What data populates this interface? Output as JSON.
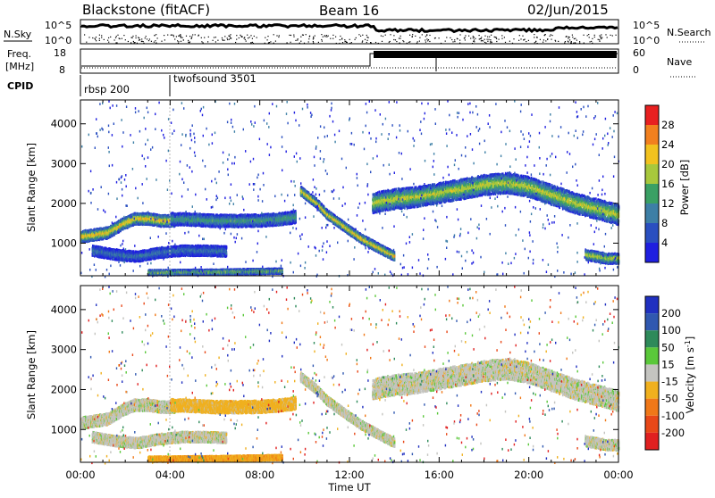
{
  "header": {
    "station": "Blackstone (fitACF)",
    "beam": "Beam 16",
    "date": "02/Jun/2015"
  },
  "summary_panels": {
    "nsky_label": "N.Sky",
    "nsearch_label": "N.Search",
    "nsky_ticks": [
      "10^5",
      "10^0"
    ],
    "nsearch_ticks": [
      "10^5",
      "10^0"
    ],
    "freq_label": [
      "Freq.",
      "[MHz]"
    ],
    "freq_ticks": [
      "18",
      "8"
    ],
    "nave_label": "Nave",
    "nave_ticks": [
      "60",
      "0"
    ],
    "cpid_label": "CPID",
    "cpid_segments": [
      {
        "label": "rbsp 200",
        "start_ut": 0.0
      },
      {
        "label": "twofsound 3501",
        "start_ut": 4.0
      }
    ]
  },
  "chart_data": [
    {
      "type": "heatmap",
      "title": "",
      "xlabel": "",
      "ylabel": "Slant Range [km]",
      "xlim": [
        0,
        24
      ],
      "ylim": [
        180,
        4600
      ],
      "yticks": [
        1000,
        2000,
        3000,
        4000
      ],
      "colorbar": {
        "label": "Power [dB]",
        "ticks": [
          4,
          8,
          12,
          16,
          20,
          24,
          28
        ],
        "levels": [
          {
            "min": 0,
            "max": 4,
            "color": "#1f1fe0"
          },
          {
            "min": 4,
            "max": 8,
            "color": "#2a4fc0"
          },
          {
            "min": 8,
            "max": 12,
            "color": "#3d7fa6"
          },
          {
            "min": 12,
            "max": 16,
            "color": "#3aa064"
          },
          {
            "min": 16,
            "max": 20,
            "color": "#a8c83c"
          },
          {
            "min": 20,
            "max": 24,
            "color": "#f2c21e"
          },
          {
            "min": 24,
            "max": 28,
            "color": "#f2801e"
          },
          {
            "min": 28,
            "max": 32,
            "color": "#e82020"
          }
        ]
      },
      "scatter_bands": [
        {
          "x": [
            0.0,
            0.6,
            1.2,
            1.8,
            2.4,
            3.0,
            3.6,
            4.2
          ],
          "range": [
            1150,
            1200,
            1250,
            1450,
            1600,
            1600,
            1550,
            1550
          ],
          "width": 280,
          "peak_db": 24
        },
        {
          "x": [
            4.0,
            5.0,
            6.0,
            7.0,
            8.0,
            9.0,
            9.6
          ],
          "range": [
            1600,
            1580,
            1550,
            1550,
            1560,
            1600,
            1650
          ],
          "width": 300,
          "peak_db": 14
        },
        {
          "x": [
            9.8,
            10.5,
            11.0,
            11.5,
            12.0,
            12.5,
            13.0,
            13.5,
            14.0
          ],
          "range": [
            2300,
            2000,
            1700,
            1500,
            1300,
            1100,
            950,
            800,
            650
          ],
          "width": 220,
          "peak_db": 24
        },
        {
          "x": [
            13.0,
            14.0,
            15.0,
            16.0,
            17.0,
            18.0,
            19.0,
            20.0,
            21.0,
            22.0,
            23.0,
            24.0
          ],
          "range": [
            2000,
            2100,
            2150,
            2250,
            2350,
            2450,
            2500,
            2400,
            2200,
            2000,
            1850,
            1700
          ],
          "width": 500,
          "peak_db": 20
        },
        {
          "x": [
            0.5,
            1.5,
            2.5,
            3.5,
            4.5,
            5.5,
            6.5
          ],
          "range": [
            800,
            700,
            650,
            750,
            800,
            800,
            780
          ],
          "width": 250,
          "peak_db": 10
        },
        {
          "x": [
            3.0,
            4.0,
            5.0,
            6.0,
            7.0,
            8.0,
            9.0
          ],
          "range": [
            250,
            250,
            260,
            260,
            270,
            280,
            290
          ],
          "width": 120,
          "peak_db": 18
        },
        {
          "x": [
            22.5,
            23.0,
            23.5,
            24.0
          ],
          "range": [
            700,
            650,
            600,
            600
          ],
          "width": 250,
          "peak_db": 20
        }
      ]
    },
    {
      "type": "heatmap",
      "title": "",
      "xlabel": "Time UT",
      "ylabel": "Slant Range [km]",
      "xlim": [
        0,
        24
      ],
      "ylim": [
        180,
        4600
      ],
      "xticks": [
        "00:00",
        "04:00",
        "08:00",
        "12:00",
        "16:00",
        "20:00",
        "00:00"
      ],
      "yticks": [
        1000,
        2000,
        3000,
        4000
      ],
      "colorbar": {
        "label": "Velocity [m s^-1]",
        "ticks": [
          200,
          100,
          50,
          15,
          -15,
          -50,
          -100,
          -200
        ],
        "levels": [
          {
            "min": 200,
            "max": 300,
            "color": "#2030c0"
          },
          {
            "min": 100,
            "max": 200,
            "color": "#3058b0"
          },
          {
            "min": 50,
            "max": 100,
            "color": "#2e8a5a"
          },
          {
            "min": 15,
            "max": 50,
            "color": "#5ac83a"
          },
          {
            "min": -15,
            "max": 15,
            "color": "#c4c4c0"
          },
          {
            "min": -50,
            "max": -15,
            "color": "#f0b01e"
          },
          {
            "min": -100,
            "max": -50,
            "color": "#f07818"
          },
          {
            "min": -200,
            "max": -100,
            "color": "#e84818"
          },
          {
            "min": -300,
            "max": -200,
            "color": "#e02020"
          }
        ]
      },
      "scatter_bands": [
        {
          "x": [
            0.0,
            0.6,
            1.2,
            1.8,
            2.4,
            3.0,
            3.6,
            4.2
          ],
          "range": [
            1150,
            1200,
            1250,
            1450,
            1600,
            1600,
            1550,
            1550
          ],
          "width": 280,
          "velocity": 0
        },
        {
          "x": [
            4.0,
            5.0,
            6.0,
            7.0,
            8.0,
            9.0,
            9.6
          ],
          "range": [
            1600,
            1580,
            1550,
            1550,
            1560,
            1600,
            1650
          ],
          "width": 300,
          "velocity": -30
        },
        {
          "x": [
            9.8,
            10.5,
            11.0,
            11.5,
            12.0,
            12.5,
            13.0,
            13.5,
            14.0
          ],
          "range": [
            2300,
            2000,
            1700,
            1500,
            1300,
            1100,
            950,
            800,
            650
          ],
          "width": 220,
          "velocity": 0
        },
        {
          "x": [
            13.0,
            14.0,
            15.0,
            16.0,
            17.0,
            18.0,
            19.0,
            20.0,
            21.0,
            22.0,
            23.0,
            24.0
          ],
          "range": [
            2000,
            2100,
            2150,
            2250,
            2350,
            2450,
            2500,
            2400,
            2200,
            2000,
            1850,
            1700
          ],
          "width": 500,
          "velocity": 0
        },
        {
          "x": [
            0.5,
            1.5,
            2.5,
            3.5,
            4.5,
            5.5,
            6.5
          ],
          "range": [
            800,
            700,
            650,
            750,
            800,
            800,
            780
          ],
          "width": 250,
          "velocity": 0
        },
        {
          "x": [
            3.0,
            4.0,
            5.0,
            6.0,
            7.0,
            8.0,
            9.0
          ],
          "range": [
            250,
            250,
            260,
            260,
            270,
            280,
            290
          ],
          "width": 120,
          "velocity": -40
        },
        {
          "x": [
            22.5,
            23.0,
            23.5,
            24.0
          ],
          "range": [
            700,
            650,
            600,
            600
          ],
          "width": 250,
          "velocity": 0
        }
      ]
    }
  ]
}
